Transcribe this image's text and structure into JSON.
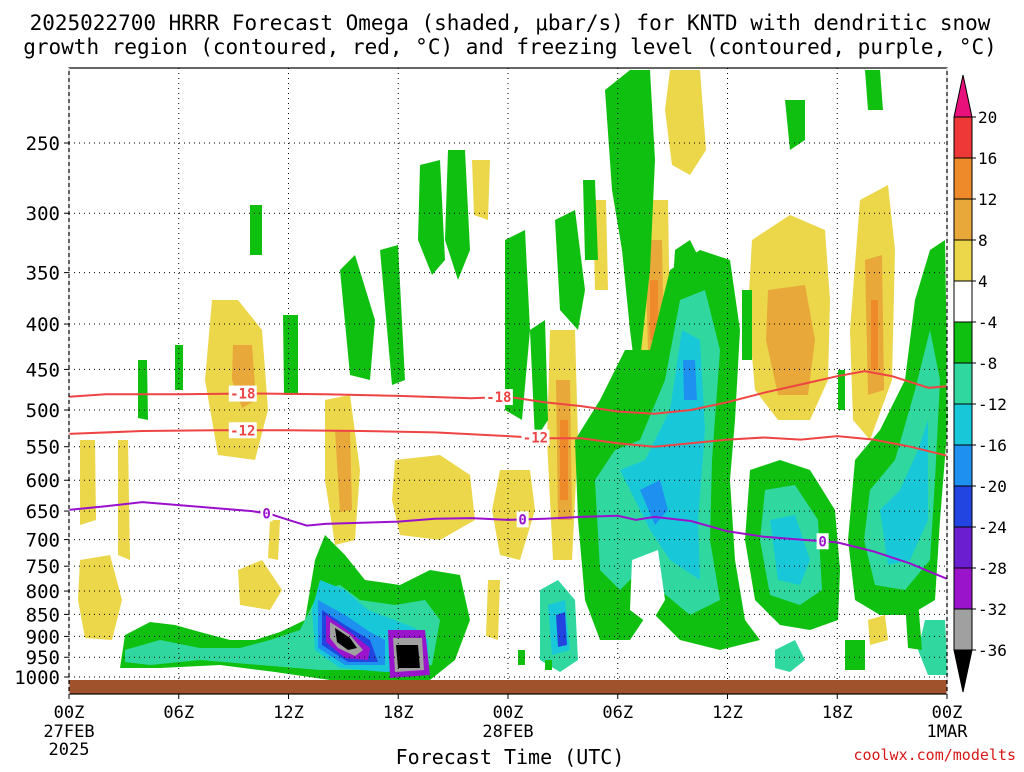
{
  "title_lines": [
    "2025022700 HRRR Forecast Omega (shaded, μbar/s) for KNTD with dendritic snow",
    "growth region (contoured, red, °C) and freezing level (contoured, purple, °C)"
  ],
  "footer": {
    "credit": "coolwx.com/modelts"
  },
  "chart_data": {
    "type": "heatmap",
    "title": "2025022700 HRRR Forecast Omega (shaded, μbar/s) for KNTD with dendritic snow growth region (contoured, red, °C) and freezing level (contoured, purple, °C)",
    "xlabel": "Forecast Time (UTC)",
    "ylabel": "",
    "y_scale": "pressure (hPa, decreasing upward)",
    "ylim": [
      1000,
      200
    ],
    "xlim_hours": [
      0,
      48
    ],
    "grid": true,
    "x_ticks": [
      {
        "hour": 0,
        "label": "00Z",
        "sub": [
          "27FEB",
          "2025"
        ]
      },
      {
        "hour": 6,
        "label": "06Z",
        "sub": []
      },
      {
        "hour": 12,
        "label": "12Z",
        "sub": []
      },
      {
        "hour": 18,
        "label": "18Z",
        "sub": []
      },
      {
        "hour": 24,
        "label": "00Z",
        "sub": [
          "28FEB"
        ]
      },
      {
        "hour": 30,
        "label": "06Z",
        "sub": []
      },
      {
        "hour": 36,
        "label": "12Z",
        "sub": []
      },
      {
        "hour": 42,
        "label": "18Z",
        "sub": []
      },
      {
        "hour": 48,
        "label": "00Z",
        "sub": [
          "1MAR"
        ]
      }
    ],
    "y_ticks": [
      250,
      300,
      350,
      400,
      450,
      500,
      550,
      600,
      650,
      700,
      750,
      800,
      850,
      900,
      950,
      1000
    ],
    "colorbar": {
      "levels": [
        -36,
        -32,
        -28,
        -24,
        -20,
        -16,
        -12,
        -8,
        -4,
        4,
        8,
        12,
        16,
        20
      ],
      "labels": [
        "20",
        "16",
        "12",
        "8",
        "4",
        "-4",
        "-8",
        "-12",
        "-16",
        "-20",
        "-24",
        "-28",
        "-32",
        "-36"
      ],
      "bins_top_to_bottom": [
        "#e8107a",
        "#ee3838",
        "#ef8a2a",
        "#e8a83a",
        "#ecd64a",
        "#ffffff",
        "#10c010",
        "#30d8a0",
        "#18c8d8",
        "#1e90f0",
        "#2244e0",
        "#6a1ed0",
        "#9a14cc",
        "#a0a0a0",
        "#000000"
      ]
    },
    "contours": [
      {
        "name": "-18",
        "color": "#ee4444",
        "labels_at_hours": [
          9.5,
          23.5
        ],
        "points": [
          [
            0,
            483
          ],
          [
            2,
            480
          ],
          [
            6,
            480
          ],
          [
            10,
            479
          ],
          [
            14,
            480
          ],
          [
            18,
            482
          ],
          [
            22,
            485
          ],
          [
            24,
            483
          ],
          [
            26,
            490
          ],
          [
            28,
            495
          ],
          [
            30,
            502
          ],
          [
            32,
            505
          ],
          [
            34,
            500
          ],
          [
            36,
            490
          ],
          [
            38,
            478
          ],
          [
            40,
            468
          ],
          [
            42,
            458
          ],
          [
            43.5,
            452
          ],
          [
            45,
            458
          ],
          [
            47,
            472
          ],
          [
            48,
            470
          ]
        ]
      },
      {
        "name": "-12",
        "color": "#ee4444",
        "labels_at_hours": [
          9.5,
          25.5
        ],
        "points": [
          [
            0,
            532
          ],
          [
            4,
            528
          ],
          [
            8,
            527
          ],
          [
            12,
            527
          ],
          [
            16,
            528
          ],
          [
            20,
            530
          ],
          [
            24,
            535
          ],
          [
            26,
            538
          ],
          [
            28,
            538
          ],
          [
            30,
            545
          ],
          [
            32,
            550
          ],
          [
            34,
            545
          ],
          [
            36,
            540
          ],
          [
            38,
            537
          ],
          [
            40,
            540
          ],
          [
            42,
            535
          ],
          [
            44,
            540
          ],
          [
            46,
            550
          ],
          [
            48,
            563
          ]
        ]
      },
      {
        "name": "0",
        "color": "#9a10cc",
        "labels_at_hours": [
          10.8,
          24.8,
          41.2
        ],
        "points": [
          [
            0,
            648
          ],
          [
            2,
            642
          ],
          [
            4,
            635
          ],
          [
            6,
            640
          ],
          [
            8,
            645
          ],
          [
            10,
            650
          ],
          [
            11,
            655
          ],
          [
            12,
            665
          ],
          [
            13,
            675
          ],
          [
            14,
            672
          ],
          [
            16,
            670
          ],
          [
            18,
            668
          ],
          [
            20,
            663
          ],
          [
            22,
            662
          ],
          [
            24,
            665
          ],
          [
            26,
            663
          ],
          [
            28,
            660
          ],
          [
            30,
            658
          ],
          [
            31,
            665
          ],
          [
            32,
            660
          ],
          [
            34,
            667
          ],
          [
            36,
            685
          ],
          [
            38,
            695
          ],
          [
            40,
            700
          ],
          [
            42,
            705
          ],
          [
            44,
            722
          ],
          [
            46,
            745
          ],
          [
            47,
            760
          ],
          [
            48,
            775
          ]
        ]
      }
    ],
    "omega_features": [
      {
        "sign": "down",
        "min": -36,
        "center_hour": 18.2,
        "center_hpa": 955,
        "desc": "black core"
      },
      {
        "sign": "down",
        "min": -34,
        "center_hour": 15.0,
        "center_hpa": 890,
        "desc": "black/gray core"
      },
      {
        "sign": "down",
        "min": -20,
        "center_hour": 32.0,
        "center_hpa": 590,
        "desc": "blue core"
      },
      {
        "sign": "down",
        "min": -16,
        "center_hour": 33.3,
        "center_hpa": 420,
        "desc": "cyan core"
      },
      {
        "sign": "down",
        "min": -24,
        "center_hour": 27.3,
        "center_hpa": 900,
        "desc": "blue core"
      },
      {
        "sign": "up",
        "max": 16,
        "center_hour": 32.0,
        "center_hpa": 380,
        "desc": "red/orange streak"
      },
      {
        "sign": "up",
        "max": 16,
        "center_hour": 43.5,
        "center_hpa": 400,
        "desc": "orange streak"
      },
      {
        "sign": "up",
        "max": 12,
        "center_hour": 39.5,
        "center_hpa": 420,
        "desc": "orange region"
      },
      {
        "sign": "up",
        "max": 16,
        "center_hour": 27.3,
        "center_hpa": 600,
        "desc": "orange streak"
      }
    ]
  }
}
